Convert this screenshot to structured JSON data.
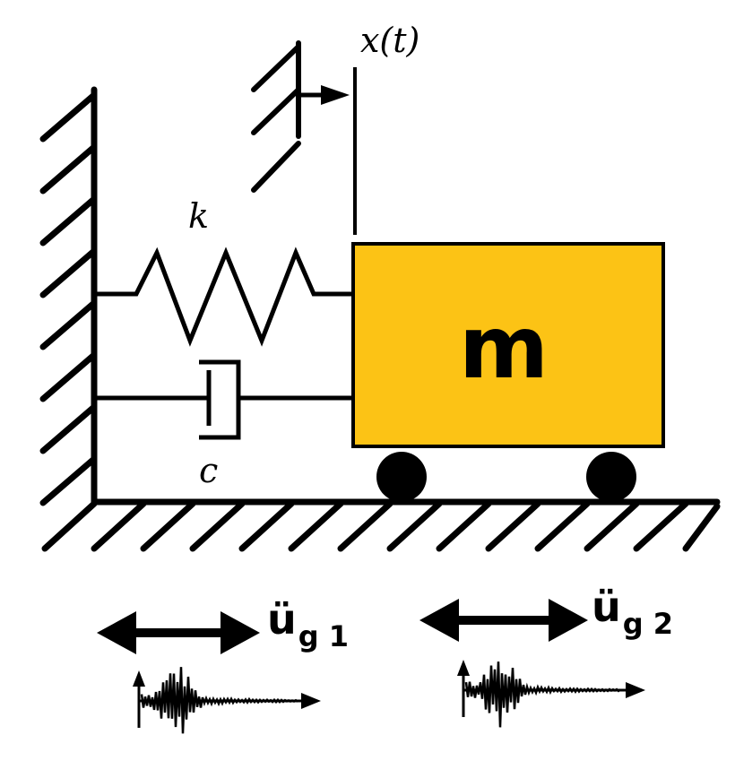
{
  "labels": {
    "displacement": "x(t)",
    "spring": "k",
    "damper": "c",
    "mass": "m"
  },
  "excitations": [
    {
      "symbol": "ü",
      "subscript": "g",
      "index": "1"
    },
    {
      "symbol": "ü",
      "subscript": "g",
      "index": "2"
    }
  ],
  "colors": {
    "mass_fill": "#FCC315",
    "line": "#000000"
  }
}
